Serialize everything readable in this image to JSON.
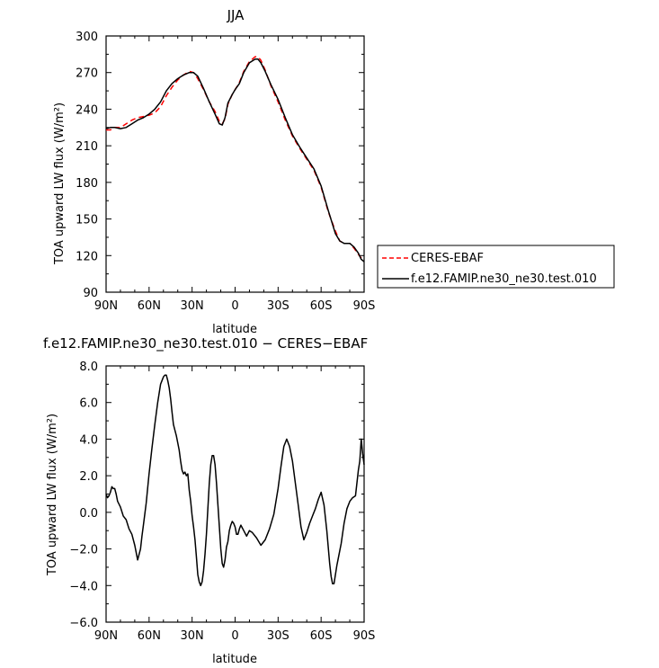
{
  "chart_data": [
    {
      "type": "line",
      "title": "JJA",
      "xlabel": "latitude",
      "ylabel": "TOA upward LW flux (W/m²)",
      "xlim": [
        90,
        -90
      ],
      "ylim": [
        90,
        300
      ],
      "x_tick_values": [
        90,
        60,
        30,
        0,
        -30,
        -60,
        -90
      ],
      "x_tick_labels": [
        "90N",
        "60N",
        "30N",
        "0",
        "30S",
        "60S",
        "90S"
      ],
      "y_tick_values": [
        90,
        120,
        150,
        180,
        210,
        240,
        270,
        300
      ],
      "y_tick_labels": [
        "90",
        "120",
        "150",
        "180",
        "210",
        "240",
        "270",
        "300"
      ],
      "legend_position": "right-outside",
      "series": [
        {
          "name": "CERES-EBAF",
          "color": "#ff0000",
          "dash": "dashed",
          "x": [
            90,
            87,
            84,
            80,
            76,
            72,
            68,
            64,
            60,
            56,
            52,
            48,
            44,
            40,
            36,
            32,
            29,
            26,
            22,
            18,
            14,
            11,
            9,
            7,
            5,
            2,
            0,
            -3,
            -6,
            -10,
            -14,
            -16,
            -18,
            -21,
            -25,
            -30,
            -35,
            -40,
            -45,
            -50,
            -55,
            -60,
            -65,
            -70,
            -73,
            -76,
            -80,
            -83,
            -86,
            -88,
            -90
          ],
          "y": [
            223,
            223,
            225,
            225,
            228,
            231,
            233,
            234,
            235,
            237,
            242,
            251,
            258,
            264,
            268,
            271,
            270,
            265,
            256,
            246,
            238,
            230,
            228,
            232,
            244,
            252,
            256,
            262,
            271,
            279,
            283,
            283,
            280,
            272,
            259,
            246,
            231,
            218,
            208,
            199,
            190,
            176,
            156,
            140,
            132,
            130,
            130,
            126,
            121,
            118,
            116
          ]
        },
        {
          "name": "f.e12.FAMIP.ne30_ne30.test.010",
          "color": "#000000",
          "dash": "solid",
          "x": [
            90,
            87,
            84,
            80,
            76,
            72,
            68,
            64,
            60,
            56,
            52,
            48,
            44,
            40,
            36,
            32,
            29,
            26,
            22,
            18,
            14,
            11,
            9,
            7,
            5,
            2,
            0,
            -3,
            -6,
            -10,
            -14,
            -16,
            -18,
            -21,
            -25,
            -30,
            -35,
            -40,
            -45,
            -50,
            -55,
            -60,
            -65,
            -70,
            -73,
            -76,
            -80,
            -83,
            -86,
            -88,
            -90
          ],
          "y": [
            224,
            225,
            225,
            224,
            225,
            228,
            231,
            233,
            236,
            240,
            246,
            255,
            261,
            265,
            268,
            270,
            270,
            267,
            257,
            246,
            236,
            228,
            227,
            233,
            245,
            252,
            256,
            261,
            270,
            278,
            281,
            281,
            278,
            271,
            260,
            248,
            233,
            219,
            209,
            200,
            191,
            177,
            157,
            138,
            132,
            130,
            130,
            127,
            122,
            117,
            115
          ]
        }
      ]
    },
    {
      "type": "line",
      "title": "f.e12.FAMIP.ne30_ne30.test.010 − CERES−EBAF",
      "xlabel": "latitude",
      "ylabel": "TOA upward LW flux (W/m²)",
      "xlim": [
        90,
        -90
      ],
      "ylim": [
        -6,
        8
      ],
      "x_tick_values": [
        90,
        60,
        30,
        0,
        -30,
        -60,
        -90
      ],
      "x_tick_labels": [
        "90N",
        "60N",
        "30N",
        "0",
        "30S",
        "60S",
        "90S"
      ],
      "y_tick_values": [
        -6,
        -4,
        -2,
        0,
        2,
        4,
        6,
        8
      ],
      "y_tick_labels": [
        "−6.0",
        "−4.0",
        "−2.0",
        "0.0",
        "2.0",
        "4.0",
        "6.0",
        "8.0"
      ],
      "series": [
        {
          "color": "#000000",
          "dash": "solid",
          "x": [
            90,
            89,
            88,
            87,
            86,
            85,
            84,
            83,
            82,
            80,
            78,
            76,
            74,
            72,
            70,
            68,
            66,
            65,
            64,
            62,
            60,
            58,
            56,
            54,
            52,
            50,
            49,
            48,
            47,
            46,
            45,
            44,
            43,
            42,
            41,
            40,
            39,
            38,
            37,
            36,
            35,
            34,
            33,
            32,
            31,
            30,
            29,
            28,
            27,
            26,
            25,
            24,
            23,
            22,
            21,
            20,
            19,
            18,
            17,
            16,
            15,
            14,
            13,
            12,
            11,
            10,
            9,
            8,
            7,
            6,
            5,
            4,
            3,
            2,
            1,
            0,
            -1,
            -2,
            -3,
            -4,
            -6,
            -8,
            -10,
            -12,
            -15,
            -18,
            -21,
            -24,
            -27,
            -30,
            -32,
            -34,
            -36,
            -38,
            -40,
            -42,
            -44,
            -46,
            -48,
            -50,
            -52,
            -54,
            -56,
            -58,
            -60,
            -62,
            -64,
            -66,
            -67,
            -68,
            -69,
            -70,
            -71,
            -72,
            -74,
            -76,
            -78,
            -80,
            -82,
            -84,
            -86,
            -87,
            -88,
            -89,
            -90
          ],
          "y": [
            1.0,
            0.8,
            0.9,
            1.1,
            1.4,
            1.3,
            1.3,
            1.0,
            0.6,
            0.3,
            -0.2,
            -0.4,
            -0.9,
            -1.2,
            -1.8,
            -2.6,
            -2.0,
            -1.3,
            -0.7,
            0.5,
            2.1,
            3.5,
            4.8,
            6.0,
            7.0,
            7.4,
            7.5,
            7.5,
            7.2,
            6.8,
            6.2,
            5.5,
            4.8,
            4.5,
            4.2,
            3.8,
            3.4,
            2.8,
            2.3,
            2.1,
            2.2,
            2.0,
            2.1,
            1.2,
            0.6,
            -0.2,
            -0.8,
            -1.5,
            -2.4,
            -3.4,
            -3.8,
            -4.0,
            -3.8,
            -3.2,
            -2.3,
            -1.2,
            0.2,
            1.6,
            2.6,
            3.1,
            3.1,
            2.6,
            1.6,
            0.4,
            -0.8,
            -2.0,
            -2.8,
            -3.0,
            -2.6,
            -1.9,
            -1.6,
            -1.0,
            -0.7,
            -0.5,
            -0.6,
            -0.8,
            -1.2,
            -1.2,
            -0.9,
            -0.7,
            -1.0,
            -1.3,
            -1.0,
            -1.1,
            -1.4,
            -1.8,
            -1.5,
            -0.9,
            -0.1,
            1.3,
            2.5,
            3.6,
            4.0,
            3.6,
            2.8,
            1.6,
            0.4,
            -0.8,
            -1.5,
            -1.1,
            -0.6,
            -0.2,
            0.2,
            0.7,
            1.1,
            0.4,
            -1.0,
            -2.8,
            -3.5,
            -3.9,
            -3.9,
            -3.4,
            -2.9,
            -2.5,
            -1.7,
            -0.6,
            0.2,
            0.6,
            0.8,
            0.9,
            2.3,
            2.8,
            4.0,
            3.2,
            2.6
          ]
        }
      ]
    }
  ]
}
